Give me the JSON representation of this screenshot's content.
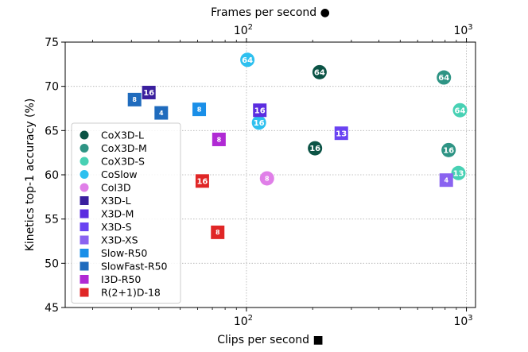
{
  "chart_data": {
    "type": "scatter",
    "xscale": "log",
    "x_top_scale": "log",
    "xlim": [
      15,
      1100
    ],
    "x_top_lim": [
      15,
      1100
    ],
    "ylim": [
      45,
      75
    ],
    "xlabel": "Clips per second ■",
    "x_top_label": "Frames per second ●",
    "ylabel": "Kinetics top-1 accuracy (%)",
    "yticks": [
      45,
      50,
      55,
      60,
      65,
      70,
      75
    ],
    "xticks": [
      {
        "value": 100,
        "base": "10",
        "exp": "2"
      },
      {
        "value": 1000,
        "base": "10",
        "exp": "3"
      }
    ],
    "x_top_ticks": [
      {
        "value": 100,
        "base": "10",
        "exp": "2"
      },
      {
        "value": 1000,
        "base": "10",
        "exp": "3"
      }
    ],
    "grid": true,
    "legend_position": "lower-left",
    "series": [
      {
        "name": "CoX3D-L",
        "marker": "circle",
        "axis": "top",
        "color": "#0b5345",
        "points": [
          {
            "x": 215,
            "y": 71.6,
            "label": "64"
          },
          {
            "x": 205,
            "y": 63.0,
            "label": "16"
          }
        ]
      },
      {
        "name": "CoX3D-M",
        "marker": "circle",
        "axis": "top",
        "color": "#2e9484",
        "points": [
          {
            "x": 790,
            "y": 71.0,
            "label": "64"
          },
          {
            "x": 830,
            "y": 62.8,
            "label": "16"
          }
        ]
      },
      {
        "name": "CoX3D-S",
        "marker": "circle",
        "axis": "top",
        "color": "#48d1b4",
        "points": [
          {
            "x": 935,
            "y": 67.3,
            "label": "64"
          },
          {
            "x": 920,
            "y": 60.2,
            "label": "13"
          }
        ]
      },
      {
        "name": "CoSlow",
        "marker": "circle",
        "axis": "top",
        "color": "#2ec0ef",
        "points": [
          {
            "x": 101,
            "y": 73.0,
            "label": "64"
          },
          {
            "x": 114,
            "y": 65.9,
            "label": "16"
          }
        ]
      },
      {
        "name": "CoI3D",
        "marker": "circle",
        "axis": "top",
        "color": "#e07fe8",
        "points": [
          {
            "x": 124,
            "y": 59.6,
            "label": "8"
          }
        ]
      },
      {
        "name": "X3D-L",
        "marker": "square",
        "axis": "bottom",
        "color": "#3a1f9e",
        "points": [
          {
            "x": 36,
            "y": 69.3,
            "label": "16"
          }
        ]
      },
      {
        "name": "X3D-M",
        "marker": "square",
        "axis": "bottom",
        "color": "#5b2de0",
        "points": [
          {
            "x": 115,
            "y": 67.3,
            "label": "16"
          }
        ]
      },
      {
        "name": "X3D-S",
        "marker": "square",
        "axis": "bottom",
        "color": "#6a43f2",
        "points": [
          {
            "x": 270,
            "y": 64.7,
            "label": "13"
          }
        ]
      },
      {
        "name": "X3D-XS",
        "marker": "square",
        "axis": "bottom",
        "color": "#8a63f0",
        "points": [
          {
            "x": 810,
            "y": 59.4,
            "label": "4"
          }
        ]
      },
      {
        "name": "Slow-R50",
        "marker": "square",
        "axis": "bottom",
        "color": "#1a8fe8",
        "points": [
          {
            "x": 61,
            "y": 67.4,
            "label": "8"
          }
        ]
      },
      {
        "name": "SlowFast-R50",
        "marker": "square",
        "axis": "bottom",
        "color": "#1f6bbd",
        "points": [
          {
            "x": 31,
            "y": 68.5,
            "label": "8"
          },
          {
            "x": 41,
            "y": 67.0,
            "label": "4"
          }
        ]
      },
      {
        "name": "I3D-R50",
        "marker": "square",
        "axis": "bottom",
        "color": "#b02ad4",
        "points": [
          {
            "x": 75,
            "y": 64.0,
            "label": "8"
          }
        ]
      },
      {
        "name": "R(2+1)D-18",
        "marker": "square",
        "axis": "bottom",
        "color": "#e02626",
        "points": [
          {
            "x": 63,
            "y": 59.3,
            "label": "16"
          },
          {
            "x": 74,
            "y": 53.5,
            "label": "8"
          }
        ]
      }
    ]
  }
}
